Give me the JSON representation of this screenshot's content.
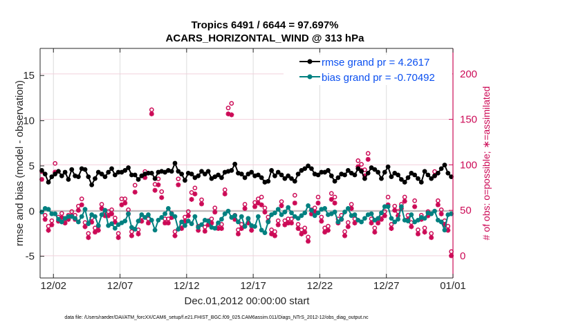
{
  "chart_data": {
    "type": "line",
    "title": [
      "Tropics 6491 / 6644 = 97.697%",
      "ACARS_HORIZONTAL_WIND @ 313 hPa"
    ],
    "xlabel": "Dec.01,2012 00:00:00 start",
    "ylabel": "rmse and bias (model - observation)",
    "ylabel_right": "# of obs: o=possible; ∗=assimilated",
    "xlim_days": [
      0,
      31
    ],
    "ylim": [
      -7.4,
      18
    ],
    "ylim_right": [
      -24.4,
      228
    ],
    "x_ticks": [
      {
        "day": 1,
        "label": "12/02"
      },
      {
        "day": 6,
        "label": "12/07"
      },
      {
        "day": 11,
        "label": "12/12"
      },
      {
        "day": 16,
        "label": "12/17"
      },
      {
        "day": 21,
        "label": "12/22"
      },
      {
        "day": 26,
        "label": "12/27"
      },
      {
        "day": 31,
        "label": "01/01"
      }
    ],
    "y_ticks": [
      -5,
      0,
      5,
      10,
      15
    ],
    "y_ticks_right": [
      0,
      50,
      100,
      150,
      200
    ],
    "grid": true,
    "zero_line": true,
    "legend_position": "top-right",
    "legend": [
      {
        "label": "rmse grand pr = 4.2617",
        "color": "#000000"
      },
      {
        "label": "bias grand pr = -0.70492",
        "color": "#008080"
      }
    ],
    "x_step_days": 0.25,
    "x_start_day": 0.125,
    "series": [
      {
        "name": "rmse",
        "axis": "left",
        "color": "#000000",
        "values": [
          4.5,
          4.1,
          3.2,
          3.8,
          4.1,
          4.4,
          3.9,
          4.3,
          3.5,
          4.6,
          3.9,
          3.8,
          4.7,
          4.6,
          3.8,
          2.9,
          3.6,
          4.3,
          4.1,
          3.8,
          4.3,
          4.7,
          4.0,
          4.3,
          4.3,
          4.5,
          4.8,
          4.0,
          4.0,
          3.5,
          3.9,
          4.1,
          4.2,
          4.2,
          3.6,
          4.3,
          4.4,
          4.3,
          4.5,
          4.4,
          5.3,
          4.4,
          4.1,
          3.4,
          4.2,
          4.1,
          3.7,
          3.9,
          4.4,
          4.1,
          4.4,
          3.6,
          3.8,
          4.0,
          3.7,
          4.3,
          4.4,
          4.5,
          5.2,
          4.2,
          4.1,
          3.7,
          4.1,
          4.3,
          3.9,
          4.0,
          3.7,
          3.2,
          3.3,
          4.5,
          3.9,
          4.3,
          4.0,
          3.6,
          3.9,
          3.6,
          3.3,
          4.1,
          4.5,
          4.7,
          5.0,
          4.7,
          4.1,
          4.0,
          4.3,
          4.3,
          4.5,
          3.9,
          3.3,
          3.7,
          4.1,
          4.0,
          4.5,
          4.2,
          4.0,
          4.7,
          4.4,
          3.6,
          4.2,
          4.8,
          4.6,
          4.3,
          3.6,
          4.3,
          4.9,
          3.8,
          4.2,
          4.0,
          3.5,
          3.2,
          3.7,
          4.2,
          4.0,
          3.6,
          3.2,
          4.4,
          4.0,
          3.6,
          3.9,
          4.2,
          4.7,
          5.1,
          4.2,
          3.8
        ],
        "values_note": "approximate, read from plot"
      },
      {
        "name": "bias",
        "axis": "left",
        "color": "#008080",
        "values": [
          -0.1,
          0.3,
          0.2,
          -0.3,
          -0.3,
          -0.9,
          -1.2,
          -0.8,
          -0.6,
          -0.6,
          -0.8,
          -1.2,
          -0.6,
          0.2,
          -1.4,
          -0.4,
          -0.6,
          -1.6,
          -0.4,
          0.1,
          -1.6,
          -1.4,
          -1.9,
          -1.5,
          -1.3,
          -1.1,
          -0.3,
          -1.8,
          -2.0,
          -1.1,
          -0.4,
          -0.7,
          -0.4,
          -1.0,
          -2.1,
          -1.0,
          -0.7,
          -0.3,
          0.3,
          -0.3,
          -0.6,
          -2.0,
          -1.2,
          -1.6,
          -1.1,
          -1.4,
          -0.6,
          -1.8,
          -1.5,
          -1.0,
          -1.1,
          -1.8,
          -1.9,
          -1.3,
          -0.9,
          -0.3,
          0.0,
          -0.7,
          -0.5,
          -1.2,
          -0.6,
          -1.7,
          -0.8,
          -1.6,
          -1.7,
          -0.6,
          -2.1,
          -2.4,
          -1.2,
          -0.4,
          -0.2,
          0.2,
          -0.4,
          -0.1,
          0.4,
          -0.2,
          -0.6,
          -0.8,
          -0.5,
          -0.2,
          0.6,
          0.1,
          -0.5,
          -0.2,
          0.2,
          0.3,
          -0.4,
          -0.3,
          -0.1,
          -1.2,
          -0.9,
          -0.1,
          0.3,
          -0.5,
          -0.4,
          -1.0,
          -1.2,
          -0.8,
          -0.4,
          -0.3,
          -1.0,
          -0.8,
          -0.2,
          0.5,
          0.5,
          -0.8,
          -1.2,
          -0.9,
          0.5,
          -1.0,
          -1.1,
          -0.4,
          -1.2,
          -1.0,
          -0.7,
          -0.8,
          -0.2,
          -0.3,
          0.0,
          -1.0,
          -1.2,
          -2.1,
          -0.4,
          -0.3
        ],
        "values_note": "approximate, read from plot"
      },
      {
        "name": "obs_possible",
        "axis": "right",
        "marker": "o",
        "color": "#cc0a56",
        "values": [
          88,
          40,
          28,
          34,
          97,
          38,
          42,
          36,
          40,
          44,
          40,
          50,
          58,
          32,
          20,
          37,
          26,
          28,
          52,
          44,
          44,
          46,
          37,
          20,
          58,
          58,
          46,
          22,
          73,
          24,
          38,
          88,
          36,
          156,
          74,
          80,
          66,
          36,
          36,
          42,
          22,
          80,
          30,
          38,
          44,
          65,
          70,
          28,
          57,
          27,
          34,
          36,
          48,
          30,
          30,
          68,
          158,
          163,
          40,
          24,
          30,
          52,
          36,
          28,
          54,
          58,
          60,
          48,
          38,
          24,
          22,
          34,
          55,
          34,
          36,
          36,
          62,
          30,
          24,
          26,
          16,
          46,
          48,
          60,
          38,
          26,
          28,
          64,
          60,
          36,
          40,
          22,
          32,
          52,
          36,
          100,
          96,
          90,
          108,
          36,
          26,
          36,
          40,
          44,
          60,
          30,
          50,
          44,
          52,
          60,
          40,
          32,
          56,
          24,
          40,
          26,
          44,
          20,
          88,
          56,
          46,
          34,
          28,
          0
        ],
        "values_note": "approximate, read from plot"
      },
      {
        "name": "obs_assimilated",
        "axis": "right",
        "marker": "*",
        "color": "#cc0a56",
        "values": [
          84,
          40,
          28,
          34,
          92,
          38,
          42,
          36,
          40,
          44,
          40,
          50,
          56,
          32,
          20,
          37,
          26,
          28,
          52,
          44,
          44,
          46,
          37,
          20,
          56,
          58,
          46,
          22,
          70,
          24,
          38,
          86,
          36,
          156,
          72,
          78,
          64,
          36,
          36,
          42,
          22,
          78,
          30,
          38,
          44,
          62,
          68,
          28,
          57,
          27,
          34,
          36,
          48,
          30,
          30,
          68,
          156,
          155,
          40,
          24,
          30,
          52,
          36,
          28,
          54,
          58,
          56,
          48,
          38,
          24,
          22,
          34,
          55,
          34,
          36,
          36,
          58,
          30,
          24,
          26,
          16,
          46,
          48,
          58,
          38,
          26,
          28,
          62,
          58,
          36,
          40,
          22,
          32,
          52,
          36,
          98,
          94,
          88,
          106,
          36,
          26,
          36,
          40,
          44,
          56,
          30,
          50,
          44,
          52,
          60,
          40,
          32,
          54,
          24,
          40,
          26,
          44,
          20,
          88,
          56,
          46,
          34,
          28,
          0
        ],
        "values_note": "approximate, read from plot"
      }
    ]
  },
  "footer": {
    "data_file": "data file: /Users/raeder/DAI/ATM_forcXX/CAM6_setup/f.e21.FHIST_BGC.f09_025.CAM6assim.011/Diags_NTrS_2012-12/obs_diag_output.nc"
  }
}
